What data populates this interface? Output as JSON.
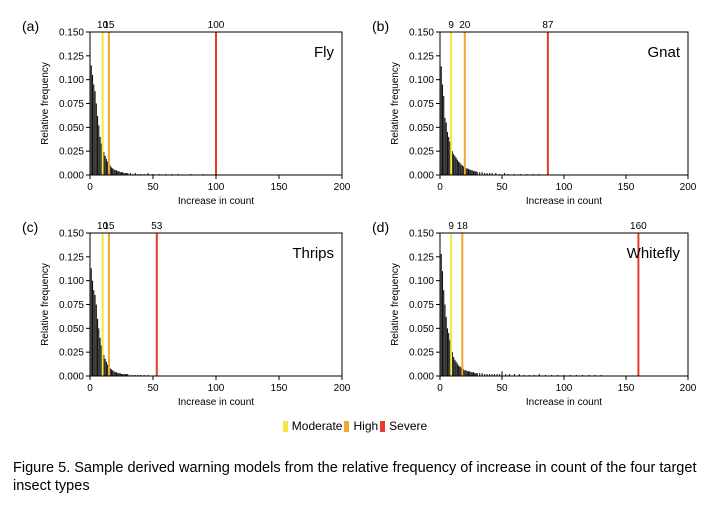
{
  "chart_data": [
    {
      "type": "bar",
      "panel_label": "(a)",
      "insect": "Fly",
      "xlabel": "Increase in count",
      "ylabel": "Relative frequency",
      "xlim": [
        0,
        200
      ],
      "ylim": [
        0,
        0.15
      ],
      "xticks": [
        "0",
        "50",
        "100",
        "150",
        "200"
      ],
      "yticks": [
        "0.000",
        "0.025",
        "0.050",
        "0.075",
        "0.100",
        "0.125",
        "0.150"
      ],
      "thresholds": [
        {
          "level": "Moderate",
          "x": 10,
          "label": "10",
          "color": "#f5e642"
        },
        {
          "level": "High",
          "x": 15,
          "label": "15",
          "color": "#f0a830"
        },
        {
          "level": "Severe",
          "x": 100,
          "label": "100",
          "color": "#e8392c"
        }
      ],
      "x": [
        1,
        2,
        3,
        4,
        5,
        6,
        7,
        8,
        9,
        10,
        11,
        12,
        13,
        14,
        15,
        16,
        17,
        18,
        19,
        20,
        21,
        22,
        23,
        24,
        25,
        26,
        27,
        28,
        29,
        30,
        32,
        34,
        36,
        38,
        40,
        43,
        46,
        50,
        55,
        60,
        65,
        70,
        80,
        90
      ],
      "values": [
        0.115,
        0.105,
        0.095,
        0.088,
        0.075,
        0.062,
        0.052,
        0.04,
        0.033,
        0.03,
        0.024,
        0.02,
        0.017,
        0.014,
        0.012,
        0.01,
        0.008,
        0.007,
        0.006,
        0.005,
        0.005,
        0.004,
        0.004,
        0.003,
        0.003,
        0.003,
        0.002,
        0.002,
        0.002,
        0.002,
        0.002,
        0.001,
        0.002,
        0.001,
        0.001,
        0.001,
        0.002,
        0.001,
        0.001,
        0.001,
        0.001,
        0.001,
        0.001,
        0.001
      ]
    },
    {
      "type": "bar",
      "panel_label": "(b)",
      "insect": "Gnat",
      "xlabel": "Increase in count",
      "ylabel": "Relative frequency",
      "xlim": [
        0,
        200
      ],
      "ylim": [
        0,
        0.15
      ],
      "xticks": [
        "0",
        "50",
        "100",
        "150",
        "200"
      ],
      "yticks": [
        "0.000",
        "0.025",
        "0.050",
        "0.075",
        "0.100",
        "0.125",
        "0.150"
      ],
      "thresholds": [
        {
          "level": "Moderate",
          "x": 9,
          "label": "9",
          "color": "#f5e642"
        },
        {
          "level": "High",
          "x": 20,
          "label": "20",
          "color": "#f0a830"
        },
        {
          "level": "Severe",
          "x": 87,
          "label": "87",
          "color": "#e8392c"
        }
      ],
      "x": [
        1,
        2,
        3,
        4,
        5,
        6,
        7,
        8,
        9,
        10,
        11,
        12,
        13,
        14,
        15,
        16,
        17,
        18,
        19,
        20,
        21,
        22,
        23,
        24,
        25,
        26,
        27,
        28,
        29,
        30,
        32,
        34,
        36,
        38,
        40,
        42,
        45,
        48,
        52,
        55,
        60,
        65,
        70,
        75,
        80
      ],
      "values": [
        0.114,
        0.095,
        0.083,
        0.06,
        0.055,
        0.045,
        0.04,
        0.035,
        0.03,
        0.025,
        0.022,
        0.02,
        0.018,
        0.016,
        0.014,
        0.013,
        0.011,
        0.01,
        0.009,
        0.008,
        0.007,
        0.007,
        0.006,
        0.006,
        0.005,
        0.005,
        0.004,
        0.004,
        0.004,
        0.003,
        0.003,
        0.003,
        0.002,
        0.002,
        0.002,
        0.002,
        0.002,
        0.001,
        0.002,
        0.001,
        0.001,
        0.001,
        0.001,
        0.001,
        0.001
      ]
    },
    {
      "type": "bar",
      "panel_label": "(c)",
      "insect": "Thrips",
      "xlabel": "Increase in count",
      "ylabel": "Relative frequency",
      "xlim": [
        0,
        200
      ],
      "ylim": [
        0,
        0.15
      ],
      "xticks": [
        "0",
        "50",
        "100",
        "150",
        "200"
      ],
      "yticks": [
        "0.000",
        "0.025",
        "0.050",
        "0.075",
        "0.100",
        "0.125",
        "0.150"
      ],
      "thresholds": [
        {
          "level": "Moderate",
          "x": 10,
          "label": "10",
          "color": "#f5e642"
        },
        {
          "level": "High",
          "x": 15,
          "label": "15",
          "color": "#f0a830"
        },
        {
          "level": "Severe",
          "x": 53,
          "label": "53",
          "color": "#e8392c"
        }
      ],
      "x": [
        1,
        2,
        3,
        4,
        5,
        6,
        7,
        8,
        9,
        10,
        11,
        12,
        13,
        14,
        15,
        16,
        17,
        18,
        19,
        20,
        21,
        22,
        23,
        24,
        25,
        26,
        27,
        28,
        29,
        30,
        32,
        34,
        36,
        38,
        40,
        43,
        46
      ],
      "values": [
        0.113,
        0.1,
        0.09,
        0.085,
        0.075,
        0.06,
        0.05,
        0.04,
        0.032,
        0.028,
        0.022,
        0.018,
        0.015,
        0.012,
        0.01,
        0.008,
        0.007,
        0.006,
        0.005,
        0.004,
        0.004,
        0.003,
        0.003,
        0.003,
        0.002,
        0.002,
        0.002,
        0.002,
        0.002,
        0.002,
        0.001,
        0.001,
        0.001,
        0.001,
        0.001,
        0.001,
        0.001
      ]
    },
    {
      "type": "bar",
      "panel_label": "(d)",
      "insect": "Whitefly",
      "xlabel": "Increase in count",
      "ylabel": "Relative frequency",
      "xlim": [
        0,
        200
      ],
      "ylim": [
        0,
        0.15
      ],
      "xticks": [
        "0",
        "50",
        "100",
        "150",
        "200"
      ],
      "yticks": [
        "0.000",
        "0.025",
        "0.050",
        "0.075",
        "0.100",
        "0.125",
        "0.150"
      ],
      "thresholds": [
        {
          "level": "Moderate",
          "x": 9,
          "label": "9",
          "color": "#f5e642"
        },
        {
          "level": "High",
          "x": 18,
          "label": "18",
          "color": "#f0a830"
        },
        {
          "level": "Severe",
          "x": 160,
          "label": "160",
          "color": "#e8392c"
        }
      ],
      "x": [
        1,
        2,
        3,
        4,
        5,
        6,
        7,
        8,
        9,
        10,
        11,
        12,
        13,
        14,
        15,
        16,
        17,
        18,
        19,
        20,
        21,
        22,
        23,
        24,
        25,
        26,
        27,
        28,
        29,
        30,
        32,
        34,
        36,
        38,
        40,
        42,
        44,
        46,
        48,
        50,
        53,
        56,
        60,
        64,
        68,
        72,
        76,
        80,
        85,
        90,
        95,
        100,
        105,
        110,
        115,
        120,
        125,
        130
      ],
      "values": [
        0.128,
        0.11,
        0.09,
        0.075,
        0.062,
        0.05,
        0.045,
        0.038,
        0.032,
        0.025,
        0.02,
        0.017,
        0.015,
        0.013,
        0.011,
        0.01,
        0.009,
        0.008,
        0.007,
        0.006,
        0.006,
        0.005,
        0.005,
        0.005,
        0.004,
        0.004,
        0.004,
        0.003,
        0.003,
        0.003,
        0.003,
        0.003,
        0.002,
        0.002,
        0.002,
        0.002,
        0.002,
        0.002,
        0.002,
        0.005,
        0.002,
        0.002,
        0.002,
        0.002,
        0.001,
        0.001,
        0.001,
        0.002,
        0.001,
        0.001,
        0.001,
        0.001,
        0.001,
        0.001,
        0.001,
        0.001,
        0.001,
        0.001
      ]
    }
  ],
  "legend": [
    {
      "label": "Moderate",
      "color": "#f5e642"
    },
    {
      "label": "High",
      "color": "#f0a830"
    },
    {
      "label": "Severe",
      "color": "#e8392c"
    }
  ],
  "caption": "Figure 5. Sample derived warning models from the relative frequency of increase in count of the four target insect types"
}
